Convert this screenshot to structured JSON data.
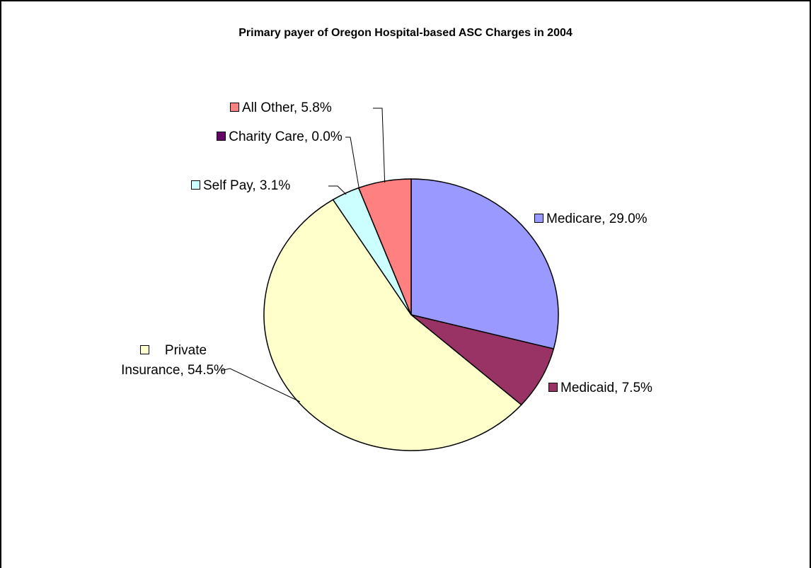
{
  "chart_data": {
    "type": "pie",
    "title": "Primary payer of Oregon Hospital-based ASC Charges in 2004",
    "values": [
      29.0,
      7.5,
      54.5,
      3.1,
      0.0,
      5.8
    ],
    "value_labels": [
      "Medicare, 29.0%",
      "Medicaid, 7.5%",
      "Private Insurance, 54.5%",
      "Self Pay, 3.1%",
      "Charity Care, 0.0%",
      "All Other, 5.8%"
    ],
    "colors": [
      "#9999ff",
      "#993366",
      "#ffffcc",
      "#ccffff",
      "#660066",
      "#ff8080"
    ]
  }
}
